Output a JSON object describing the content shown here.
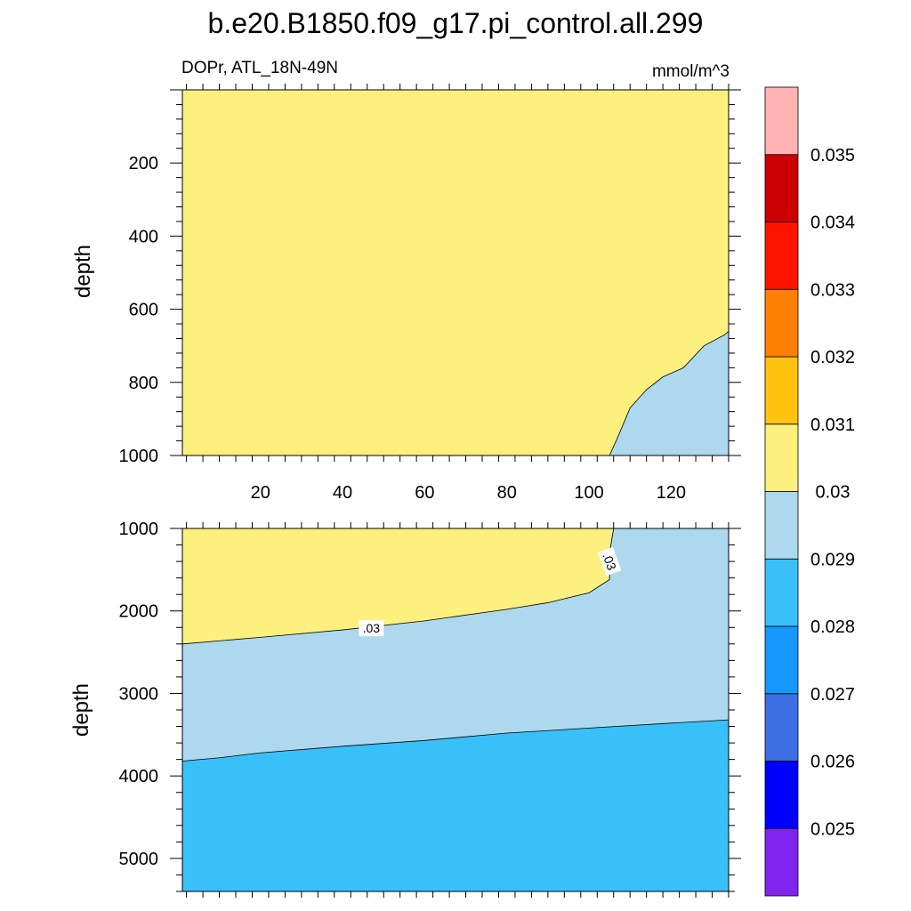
{
  "title": "b.e20.B1850.f09_g17.pi_control.all.299",
  "chart_data": {
    "type": "contour",
    "title": "b.e20.B1850.f09_g17.pi_control.all.299",
    "variable_label": "DOPr, ATL_18N-49N",
    "units_label": "mmol/m^3",
    "x_ticks": [
      "20",
      "40",
      "60",
      "80",
      "100",
      "120"
    ],
    "x_range": [
      1,
      134
    ],
    "ylabel": "depth",
    "panels": [
      {
        "name": "upper",
        "y_range": [
          0,
          1000
        ],
        "y_ticks": [
          "200",
          "400",
          "600",
          "800",
          "1000"
        ],
        "y_tick_values": [
          200,
          400,
          600,
          800,
          1000
        ],
        "background_level": "0.03-0.031",
        "regions": [
          {
            "level": "0.029-0.03",
            "boundary": [
              [
                105,
                1000
              ],
              [
                107,
                950
              ],
              [
                110,
                870
              ],
              [
                114,
                820
              ],
              [
                118,
                785
              ],
              [
                123,
                760
              ],
              [
                128,
                700
              ],
              [
                133,
                670
              ],
              [
                134,
                660
              ]
            ]
          }
        ],
        "contour_labels": []
      },
      {
        "name": "lower",
        "y_range": [
          1000,
          5400
        ],
        "y_ticks": [
          "1000",
          "2000",
          "3000",
          "4000",
          "5000"
        ],
        "y_tick_values": [
          1000,
          2000,
          3000,
          4000,
          5000
        ],
        "background_level": "0.028-0.029",
        "regions": [
          {
            "level": "0.029-0.03",
            "boundary": [
              [
                1,
                3820
              ],
              [
                10,
                3780
              ],
              [
                20,
                3720
              ],
              [
                40,
                3640
              ],
              [
                60,
                3570
              ],
              [
                80,
                3480
              ],
              [
                100,
                3420
              ],
              [
                120,
                3360
              ],
              [
                134,
                3320
              ]
            ]
          },
          {
            "level": "0.03-0.031",
            "boundary": [
              [
                1,
                2400
              ],
              [
                20,
                2320
              ],
              [
                40,
                2230
              ],
              [
                60,
                2120
              ],
              [
                80,
                1980
              ],
              [
                90,
                1900
              ],
              [
                100,
                1780
              ],
              [
                105,
                1620
              ],
              [
                105,
                1300
              ],
              [
                106,
                1000
              ]
            ]
          }
        ],
        "contour_labels": [
          {
            "text": ".03",
            "x": 47,
            "y": 2210
          },
          {
            "text": ".03",
            "x": 105,
            "y": 1400
          }
        ]
      }
    ],
    "colorbar": {
      "levels": [
        "0.025",
        "0.026",
        "0.027",
        "0.028",
        "0.029",
        "0.03",
        "0.031",
        "0.032",
        "0.033",
        "0.034",
        "0.035"
      ],
      "colors": [
        "#8224F0",
        "#0000FF",
        "#3B6FE3",
        "#1699FF",
        "#39C0F8",
        "#ADD8EE",
        "#FDF07E",
        "#FFC20E",
        "#FF7F00",
        "#FF1400",
        "#CC0000",
        "#FFB3B3"
      ]
    }
  }
}
